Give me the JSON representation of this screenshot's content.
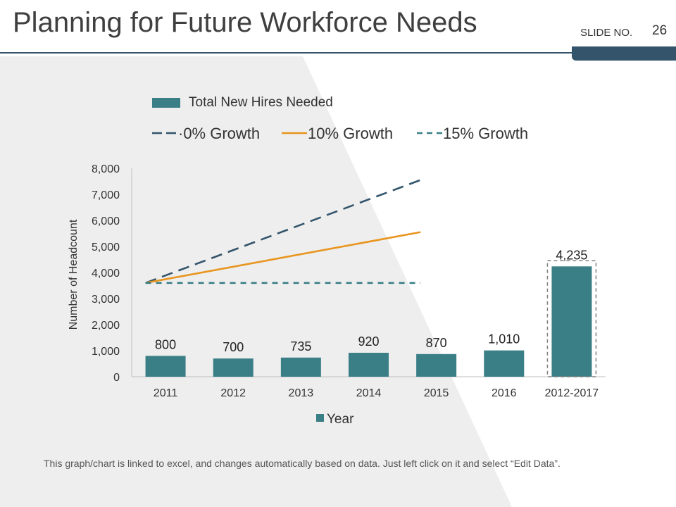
{
  "slide": {
    "title": "Planning for Future Workforce Needs",
    "slide_label": "SLIDE NO.",
    "slide_number": "26",
    "footer_note": "This graph/chart is linked to excel, and changes automatically based on data. Just left click on it and select “Edit Data”."
  },
  "colors": {
    "bar": "#3a7f86",
    "growth0": "#33546b",
    "growth10": "#e8951e",
    "growth15": "#3a7f86",
    "title_rule": "#33546b",
    "background_panel": "#eeeeee"
  },
  "chart_data": {
    "type": "bar",
    "title": "",
    "xlabel": "Year",
    "ylabel": "Number of Headcount",
    "ylim": [
      0,
      8000
    ],
    "yticks": [
      0,
      1000,
      2000,
      3000,
      4000,
      5000,
      6000,
      7000,
      8000
    ],
    "ytick_labels": [
      "0",
      "1,000",
      "2,000",
      "3,000",
      "4,000",
      "5,000",
      "6,000",
      "7,000",
      "8,000"
    ],
    "categories": [
      "2011",
      "2012",
      "2013",
      "2014",
      "2015",
      "2016",
      "2012-2017"
    ],
    "series": [
      {
        "name": "Total New Hires Needed",
        "type": "bar",
        "values": [
          800,
          700,
          735,
          920,
          870,
          1010,
          4235
        ],
        "labels": [
          "800",
          "700",
          "735",
          "920",
          "870",
          "1,010",
          "4,235"
        ]
      }
    ],
    "lines": [
      {
        "name": "·0% Growth",
        "style": "long-dash",
        "color_key": "growth0",
        "x": [
          "2011",
          "2015"
        ],
        "y": [
          3600,
          7550
        ]
      },
      {
        "name": "10% Growth",
        "style": "solid",
        "color_key": "growth10",
        "x": [
          "2011",
          "2015"
        ],
        "y": [
          3600,
          5550
        ]
      },
      {
        "name": "15% Growth",
        "style": "dash",
        "color_key": "growth15",
        "x": [
          "2011",
          "2015"
        ],
        "y": [
          3600,
          3600
        ]
      }
    ],
    "legend_position": "top"
  }
}
